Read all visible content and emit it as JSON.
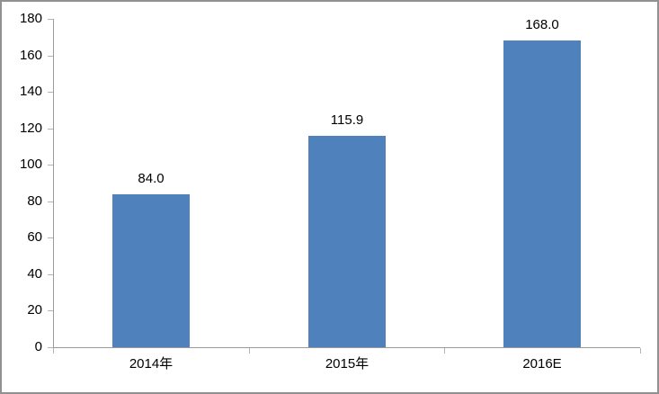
{
  "chart_data": {
    "type": "bar",
    "categories": [
      "2014年",
      "2015年",
      "2016E"
    ],
    "values": [
      84.0,
      115.9,
      168.0
    ],
    "value_labels": [
      "84.0",
      "115.9",
      "168.0"
    ],
    "title": "",
    "xlabel": "",
    "ylabel": "",
    "ylim": [
      0,
      180
    ],
    "yticks": [
      0,
      20,
      40,
      60,
      80,
      100,
      120,
      140,
      160,
      180
    ],
    "grid": false,
    "legend": "none",
    "bar_color": "#4F81BD",
    "axis_color": "#9A9A9A",
    "tick_color": "#B3B3B3",
    "text_color": "#000000",
    "frame_border_color": "#919191",
    "background": "#FFFFFF"
  }
}
